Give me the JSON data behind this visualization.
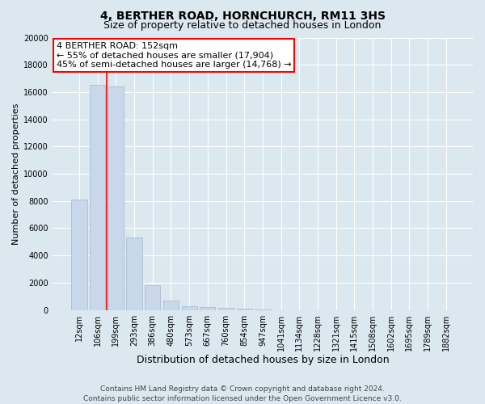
{
  "title1": "4, BERTHER ROAD, HORNCHURCH, RM11 3HS",
  "title2": "Size of property relative to detached houses in London",
  "xlabel": "Distribution of detached houses by size in London",
  "ylabel": "Number of detached properties",
  "categories": [
    "12sqm",
    "106sqm",
    "199sqm",
    "293sqm",
    "386sqm",
    "480sqm",
    "573sqm",
    "667sqm",
    "760sqm",
    "854sqm",
    "947sqm",
    "1041sqm",
    "1134sqm",
    "1228sqm",
    "1321sqm",
    "1415sqm",
    "1508sqm",
    "1602sqm",
    "1695sqm",
    "1789sqm",
    "1882sqm"
  ],
  "values": [
    8100,
    16500,
    16400,
    5300,
    1800,
    700,
    300,
    200,
    150,
    100,
    50,
    0,
    0,
    0,
    0,
    0,
    0,
    0,
    0,
    0,
    0
  ],
  "bar_color": "#c8d8ea",
  "bar_edge_color": "#aabdd0",
  "red_line_x": 1.5,
  "annotation_line1": "4 BERTHER ROAD: 152sqm",
  "annotation_line2": "← 55% of detached houses are smaller (17,904)",
  "annotation_line3": "45% of semi-detached houses are larger (14,768) →",
  "ylim": [
    0,
    20000
  ],
  "yticks": [
    0,
    2000,
    4000,
    6000,
    8000,
    10000,
    12000,
    14000,
    16000,
    18000,
    20000
  ],
  "footer1": "Contains HM Land Registry data © Crown copyright and database right 2024.",
  "footer2": "Contains public sector information licensed under the Open Government Licence v3.0.",
  "bg_color": "#dce8f0",
  "plot_bg_color": "#dce8f0",
  "grid_color": "#ffffff",
  "title1_fontsize": 10,
  "title2_fontsize": 9,
  "tick_fontsize": 7,
  "ylabel_fontsize": 8,
  "xlabel_fontsize": 9,
  "footer_fontsize": 6.5,
  "ann_fontsize": 8
}
